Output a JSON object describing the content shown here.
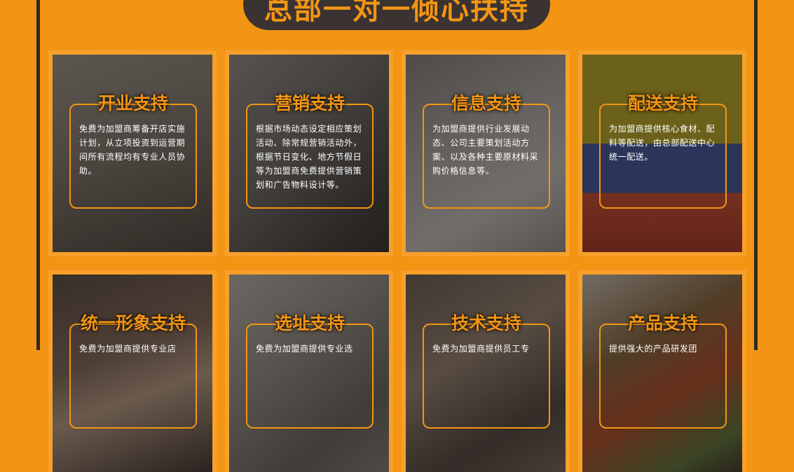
{
  "header": {
    "title": "总部一对一倾心扶持"
  },
  "cards": [
    {
      "title": "开业支持",
      "desc": "免费为加盟商筹备开店实施计划，从立项投资到运营期间所有流程均有专业人员协助。"
    },
    {
      "title": "营销支持",
      "desc": "根据市场动态设定相应策划活动、除常规营销活动外，根据节日变化、地方节假日等为加盟商免费提供营销策划和广告物料设计等。"
    },
    {
      "title": "信息支持",
      "desc": "为加盟商提供行业发展动态、公司主要策划活动方案、以及各种主要原材料采购价格信息等。"
    },
    {
      "title": "配送支持",
      "desc": "为加盟商提供核心食材、配料等配送，由总部配送中心统一配送。"
    },
    {
      "title": "统一形象支持",
      "desc": "免费为加盟商提供专业店"
    },
    {
      "title": "选址支持",
      "desc": "免费为加盟商提供专业选"
    },
    {
      "title": "技术支持",
      "desc": "免费为加盟商提供员工专"
    },
    {
      "title": "产品支持",
      "desc": "提供强大的产品研发团"
    }
  ],
  "colors": {
    "accent": "#f39514",
    "dark": "#3a3331",
    "frame": "#f7a02c"
  }
}
